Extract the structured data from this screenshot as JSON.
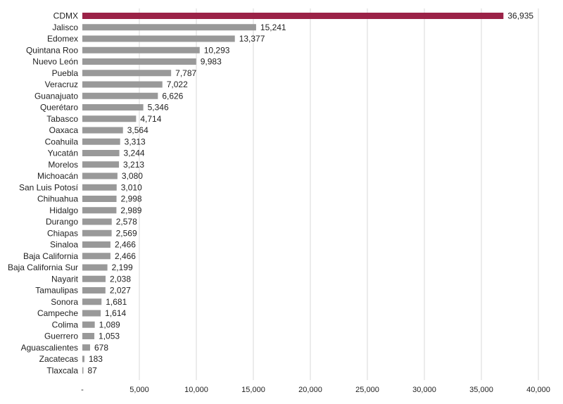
{
  "chart_data": {
    "type": "bar",
    "orientation": "horizontal",
    "categories": [
      "CDMX",
      "Jalisco",
      "Edomex",
      "Quintana Roo",
      "Nuevo León",
      "Puebla",
      "Veracruz",
      "Guanajuato",
      "Querétaro",
      "Tabasco",
      "Oaxaca",
      "Coahuila",
      "Yucatán",
      "Morelos",
      "Michoacán",
      "San Luis Potosí",
      "Chihuahua",
      "Hidalgo",
      "Durango",
      "Chiapas",
      "Sinaloa",
      "Baja California",
      "Baja California Sur",
      "Nayarit",
      "Tamaulipas",
      "Sonora",
      "Campeche",
      "Colima",
      "Guerrero",
      "Aguascalientes",
      "Zacatecas",
      "Tlaxcala"
    ],
    "values": [
      36935,
      15241,
      13377,
      10293,
      9983,
      7787,
      7022,
      6626,
      5346,
      4714,
      3564,
      3313,
      3244,
      3213,
      3080,
      3010,
      2998,
      2989,
      2578,
      2569,
      2466,
      2466,
      2199,
      2038,
      2027,
      1681,
      1614,
      1089,
      1053,
      678,
      183,
      87
    ],
    "value_labels": [
      "36,935",
      "15,241",
      "13,377",
      "10,293",
      "9,983",
      "7,787",
      "7,022",
      "6,626",
      "5,346",
      "4,714",
      "3,564",
      "3,313",
      "3,244",
      "3,213",
      "3,080",
      "3,010",
      "2,998",
      "2,989",
      "2,578",
      "2,569",
      "2,466",
      "2,466",
      "2,199",
      "2,038",
      "2,027",
      "1,681",
      "1,614",
      "1,089",
      "1,053",
      "678",
      "183",
      "87"
    ],
    "xlim": [
      0,
      40000
    ],
    "x_ticks": [
      0,
      5000,
      10000,
      15000,
      20000,
      25000,
      30000,
      35000,
      40000
    ],
    "x_tick_labels": [
      "-",
      "5,000",
      "10,000",
      "15,000",
      "20,000",
      "25,000",
      "30,000",
      "35,000",
      "40,000"
    ],
    "grid": "vertical",
    "colors": {
      "highlight": "#9b2247",
      "default": "#999999",
      "grid": "#d9d9d9"
    },
    "highlight_index": 0
  }
}
